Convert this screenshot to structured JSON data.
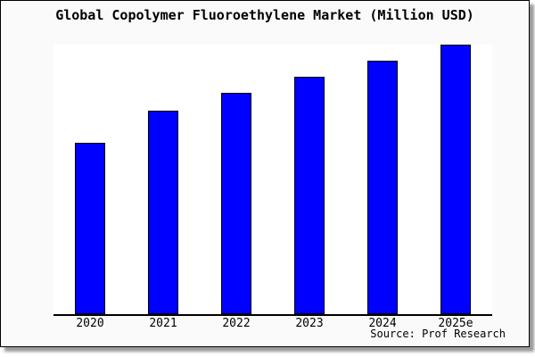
{
  "title": "Global Copolymer Fluoroethylene Market (Million USD)",
  "source": "Source: Prof Research",
  "colors": {
    "bar_fill": "#0000ff",
    "bar_border": "#000000",
    "frame_background": "#fafafa",
    "plot_background": "#ffffff",
    "axis": "#000000",
    "text": "#000000",
    "shadow": "#9a9a9a"
  },
  "chart_data": {
    "type": "bar",
    "title": "Global Copolymer Fluoroethylene Market (Million USD)",
    "categories": [
      "2020",
      "2021",
      "2022",
      "2023",
      "2024",
      "2025e"
    ],
    "values": [
      63.4,
      75.3,
      81.9,
      87.9,
      93.9,
      100
    ],
    "value_scale": "relative index estimated from bar heights (2025e = 100); no numeric y-axis shown",
    "xlabel": "",
    "ylabel": "",
    "ylim": [
      0,
      100.5
    ],
    "y_axis_visible": false,
    "gridlines": false,
    "legend": false
  }
}
